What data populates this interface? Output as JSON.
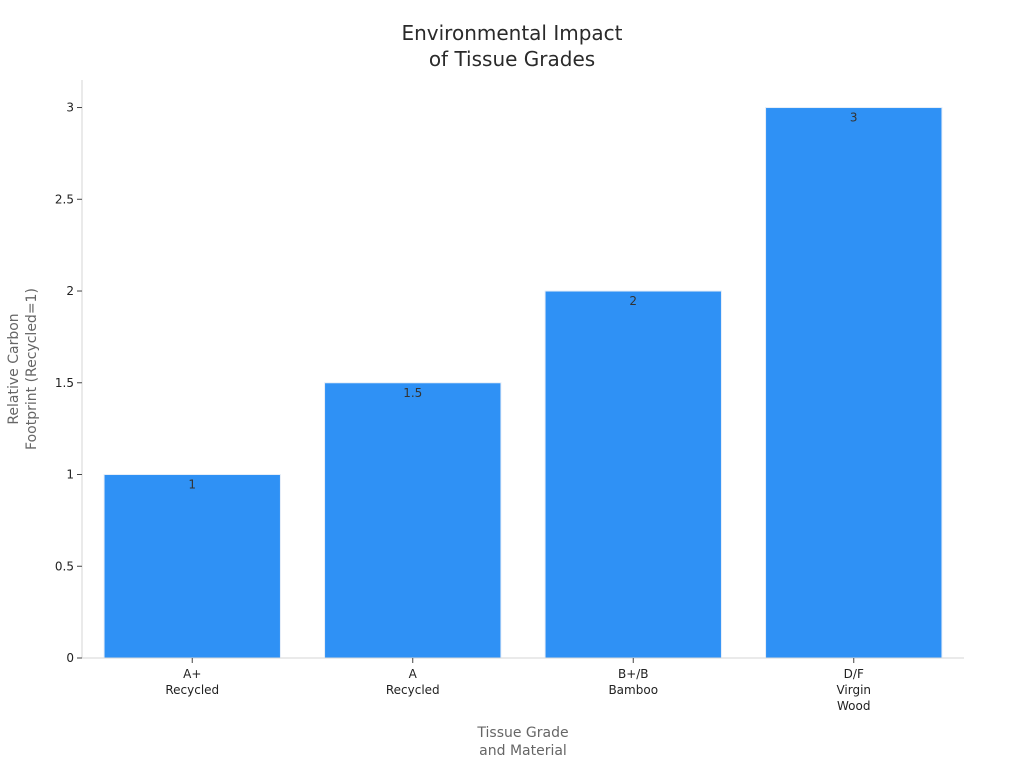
{
  "chart_data": {
    "type": "bar",
    "title_lines": [
      "Environmental Impact",
      "of Tissue Grades"
    ],
    "xlabel_lines": [
      "Tissue Grade",
      "and Material"
    ],
    "ylabel_lines": [
      "Relative Carbon",
      "Footprint (Recycled=1)"
    ],
    "categories": [
      [
        "A+",
        "Recycled"
      ],
      [
        "A",
        "Recycled"
      ],
      [
        "B+/B",
        "Bamboo"
      ],
      [
        "D/F",
        "Virgin",
        "Wood"
      ]
    ],
    "values": [
      1,
      1.5,
      2,
      3
    ],
    "value_labels": [
      "1",
      "1.5",
      "2",
      "3"
    ],
    "yticks": [
      0,
      0.5,
      1,
      1.5,
      2,
      2.5,
      3
    ],
    "ytick_labels": [
      "0",
      "0.5",
      "1",
      "1.5",
      "2",
      "2.5",
      "3"
    ],
    "ylim": [
      0,
      3.15
    ],
    "bar_color": "#2f91f5",
    "grid": false,
    "legend": "none"
  }
}
